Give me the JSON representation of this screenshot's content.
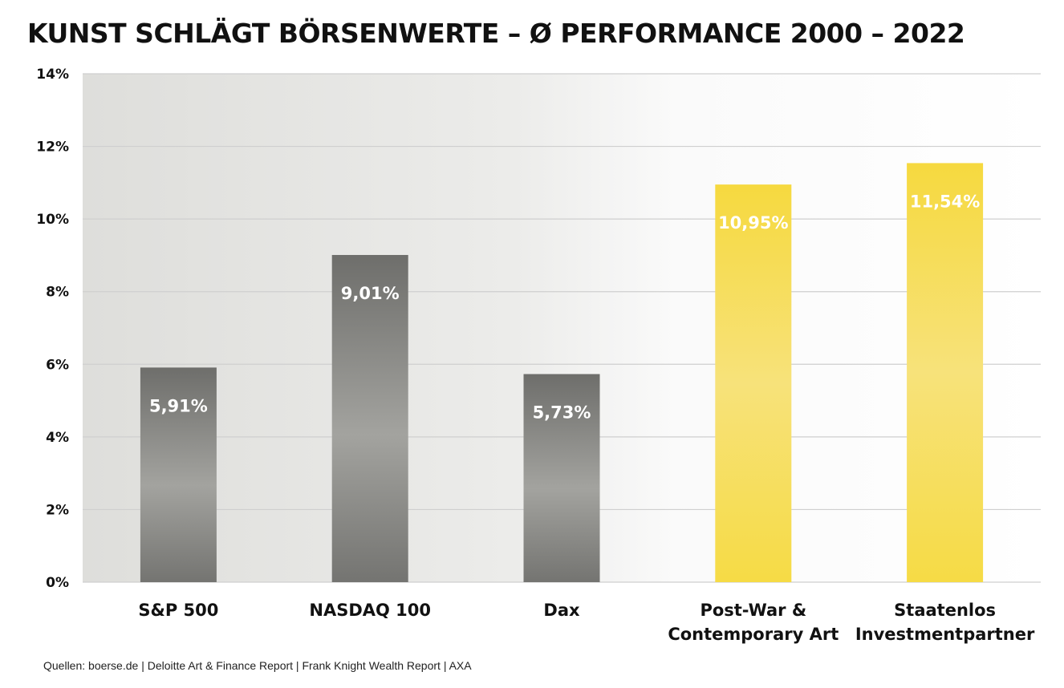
{
  "title": "KUNST SCHLÄGT BÖRSENWERTE – Ø PERFORMANCE 2000 – 2022",
  "source": "Quellen: boerse.de  |  Deloitte Art & Finance Report  |  Frank Knight Wealth Report  |  AXA",
  "colors": {
    "grey_bar": "#8c8c88",
    "yellow_bar": "#f5dc50",
    "grid": "#cfcfcf",
    "text": "#111111"
  },
  "chart_data": {
    "type": "bar",
    "title": "KUNST SCHLÄGT BÖRSENWERTE – Ø PERFORMANCE 2000 – 2022",
    "xlabel": "",
    "ylabel": "",
    "ylim": [
      0,
      14
    ],
    "yticks": [
      0,
      2,
      4,
      6,
      8,
      10,
      12,
      14
    ],
    "ytick_labels": [
      "0%",
      "2%",
      "4%",
      "6%",
      "8%",
      "10%",
      "12%",
      "14%"
    ],
    "grid": true,
    "categories": [
      [
        "S&P 500"
      ],
      [
        "NASDAQ 100"
      ],
      [
        "Dax"
      ],
      [
        "Post-War &",
        "Contemporary Art"
      ],
      [
        "Staatenlos",
        "Investmentpartner"
      ]
    ],
    "values": [
      5.91,
      9.01,
      5.73,
      10.95,
      11.54
    ],
    "data_labels": [
      "5,91%",
      "9,01%",
      "5,73%",
      "10,95%",
      "11,54%"
    ],
    "bar_colors": [
      "grey",
      "grey",
      "grey",
      "yellow",
      "yellow"
    ]
  }
}
